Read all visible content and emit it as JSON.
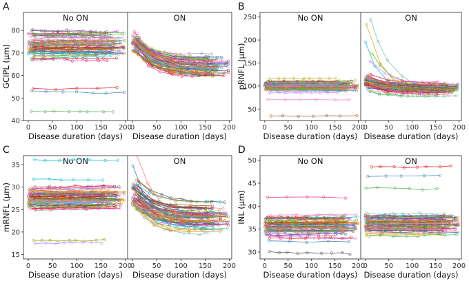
{
  "figure": {
    "group_titles": [
      "No ON",
      "ON"
    ],
    "trace_palette": [
      "#e41a1c",
      "#377eb8",
      "#4daf4a",
      "#984ea3",
      "#ff7f00",
      "#a65628",
      "#f781bf",
      "#999999",
      "#66c2a5",
      "#b2b21e",
      "#00bfc4",
      "#7cae00",
      "#c77cff",
      "#f8766d",
      "#1f78b4",
      "#e7298a",
      "#555555",
      "#d95f02"
    ]
  },
  "chart_data": [
    {
      "type": "line",
      "panel": "A",
      "groups": [
        "No ON",
        "ON"
      ],
      "xlabel": "Disease duration (days)",
      "ylabel": "GCIPL (μm)",
      "xlim": [
        -10,
        205
      ],
      "ylim": [
        40,
        88
      ],
      "xticks": [
        0,
        50,
        100,
        150,
        200
      ],
      "yticks": [
        40,
        50,
        60,
        70,
        80
      ],
      "series_count": 60,
      "no_on": {
        "median_start": 74,
        "spread": 5.5,
        "extra_start_values": [
          54,
          53,
          44
        ],
        "trend": 0
      },
      "on": {
        "median_start": 74,
        "spread": 4.5,
        "median_end": 64,
        "end_spread": 7,
        "extra_start_values": [],
        "trend": -10
      }
    },
    {
      "type": "line",
      "panel": "B",
      "groups": [
        "No ON",
        "ON"
      ],
      "xlabel": "Disease duration (days)",
      "ylabel": "pRNFL (μm)",
      "xlim": [
        -10,
        205
      ],
      "ylim": [
        25,
        260
      ],
      "xticks": [
        0,
        50,
        100,
        150,
        200
      ],
      "yticks": [
        50,
        100,
        150,
        200,
        250
      ],
      "series_count": 60,
      "no_on": {
        "median_start": 100,
        "spread": 10,
        "extra_start_values": [
          35,
          70
        ],
        "trend": 0
      },
      "on": {
        "median_start": 110,
        "spread": 18,
        "median_end": 95,
        "end_spread": 13,
        "extra_start_values": [
          245,
          235,
          195,
          170,
          155
        ],
        "trend": -15
      }
    },
    {
      "type": "line",
      "panel": "C",
      "groups": [
        "No ON",
        "ON"
      ],
      "xlabel": "Disease duration (days)",
      "ylabel": "mRNFL (μm)",
      "xlim": [
        -10,
        205
      ],
      "ylim": [
        14,
        37
      ],
      "xticks": [
        0,
        50,
        100,
        150,
        200
      ],
      "yticks": [
        15,
        20,
        25,
        30,
        35
      ],
      "series_count": 60,
      "no_on": {
        "median_start": 27.5,
        "spread": 2.8,
        "extra_start_values": [
          36,
          18,
          17.5
        ],
        "trend": 0
      },
      "on": {
        "median_start": 28,
        "spread": 3.2,
        "median_end": 23.5,
        "end_spread": 4,
        "extra_start_values": [
          37,
          35
        ],
        "trend": -4.5
      }
    },
    {
      "type": "line",
      "panel": "D",
      "groups": [
        "No ON",
        "ON"
      ],
      "xlabel": "Disease duration (days)",
      "ylabel": "INL (μm)",
      "xlim": [
        -10,
        205
      ],
      "ylim": [
        28.5,
        51
      ],
      "xticks": [
        0,
        50,
        100,
        150,
        200
      ],
      "yticks": [
        30,
        35,
        40,
        45,
        50
      ],
      "series_count": 60,
      "no_on": {
        "median_start": 35.5,
        "spread": 2.6,
        "extra_start_values": [
          42,
          30
        ],
        "trend": 0
      },
      "on": {
        "median_start": 36,
        "spread": 2.6,
        "median_end": 36,
        "end_spread": 2.6,
        "extra_start_values": [
          48.5,
          46.5,
          44
        ],
        "trend": 0
      }
    }
  ]
}
